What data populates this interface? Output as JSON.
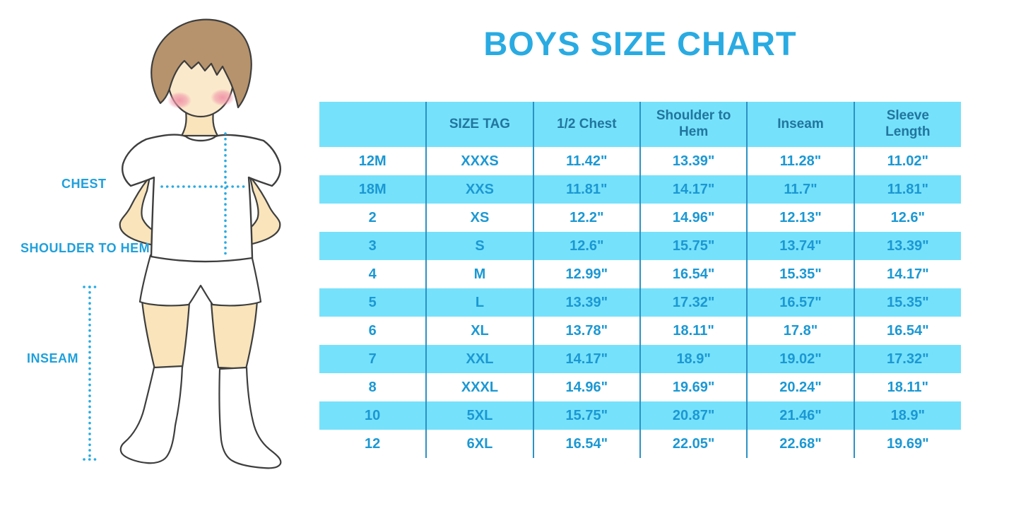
{
  "title": "BOYS SIZE CHART",
  "figure": {
    "illustration": "boy-in-tshirt-shorts-and-socks",
    "chest_label": "CHEST",
    "shoulder_to_hem_label": "SHOULDER TO HEM",
    "inseam_label": "INSEAM"
  },
  "colors": {
    "title": "#29ABE2",
    "band": "#76E1FB",
    "grid": "#2B92C4",
    "header_text": "#21759E",
    "cell_text": "#1B98D3",
    "label_text": "#1FA0DC",
    "dotted_line": "#29ABE2"
  },
  "chart_data": {
    "type": "table",
    "title": "BOYS SIZE CHART",
    "columns": [
      "",
      "SIZE TAG",
      "1/2 Chest",
      "Shoulder to Hem",
      "Inseam",
      "Sleeve Length"
    ],
    "rows": [
      [
        "12M",
        "XXXS",
        "11.42\"",
        "13.39\"",
        "11.28\"",
        "11.02\""
      ],
      [
        "18M",
        "XXS",
        "11.81\"",
        "14.17\"",
        "11.7\"",
        "11.81\""
      ],
      [
        "2",
        "XS",
        "12.2\"",
        "14.96\"",
        "12.13\"",
        "12.6\""
      ],
      [
        "3",
        "S",
        "12.6\"",
        "15.75\"",
        "13.74\"",
        "13.39\""
      ],
      [
        "4",
        "M",
        "12.99\"",
        "16.54\"",
        "15.35\"",
        "14.17\""
      ],
      [
        "5",
        "L",
        "13.39\"",
        "17.32\"",
        "16.57\"",
        "15.35\""
      ],
      [
        "6",
        "XL",
        "13.78\"",
        "18.11\"",
        "17.8\"",
        "16.54\""
      ],
      [
        "7",
        "XXL",
        "14.17\"",
        "18.9\"",
        "19.02\"",
        "17.32\""
      ],
      [
        "8",
        "XXXL",
        "14.96\"",
        "19.69\"",
        "20.24\"",
        "18.11\""
      ],
      [
        "10",
        "5XL",
        "15.75\"",
        "20.87\"",
        "21.46\"",
        "18.9\""
      ],
      [
        "12",
        "6XL",
        "16.54\"",
        "22.05\"",
        "22.68\"",
        "19.69\""
      ]
    ],
    "layout": {
      "striped_band_rows": [
        "header",
        "18M",
        "3",
        "5",
        "7",
        "10"
      ],
      "grid": "vertical column separators only"
    }
  }
}
